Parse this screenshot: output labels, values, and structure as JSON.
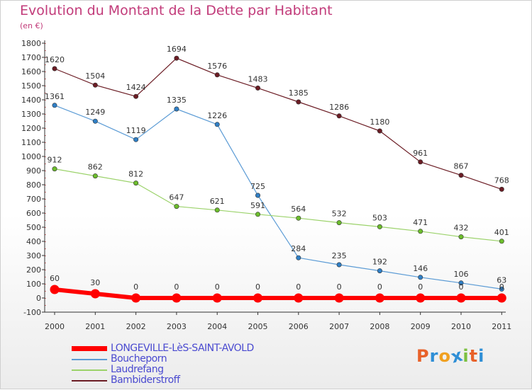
{
  "title": "Evolution du Montant de la Dette par Habitant",
  "subtitle": "(en €)",
  "logo": {
    "letters": [
      "P",
      "r",
      "o",
      "x",
      "i",
      "t",
      "i"
    ],
    "colors": [
      "#e8622a",
      "#2f8fd6",
      "#f0a020",
      "#2f8fd6",
      "#7cc040",
      "#e8622a",
      "#2f8fd6"
    ]
  },
  "chart_data": {
    "type": "line",
    "x": [
      "2000",
      "2001",
      "2002",
      "2003",
      "2004",
      "2005",
      "2006",
      "2007",
      "2008",
      "2009",
      "2010",
      "2011"
    ],
    "ylim": [
      -100,
      1800
    ],
    "yticks": [
      -100,
      0,
      100,
      200,
      300,
      400,
      500,
      600,
      700,
      800,
      900,
      1000,
      1100,
      1200,
      1300,
      1400,
      1500,
      1600,
      1700,
      1800
    ],
    "grid": false,
    "legend_position": "bottom-left",
    "series": [
      {
        "name": "Bambiderstroff",
        "color": "#6b1c24",
        "dot": "#6b1c24",
        "width": 1.2,
        "values": [
          1620,
          1504,
          1424,
          1694,
          1576,
          1483,
          1385,
          1286,
          1180,
          961,
          867,
          768
        ]
      },
      {
        "name": "Boucheporn",
        "color": "#5b9bd5",
        "dot": "#2f7fc6",
        "width": 1.2,
        "values": [
          1361,
          1249,
          1119,
          1335,
          1226,
          725,
          284,
          235,
          192,
          146,
          106,
          63
        ]
      },
      {
        "name": "Laudrefang",
        "color": "#9bd26a",
        "dot": "#6cbd2c",
        "width": 1.2,
        "values": [
          912,
          862,
          812,
          647,
          621,
          591,
          564,
          532,
          503,
          471,
          432,
          401
        ]
      },
      {
        "name": "LONGEVILLE-LèS-SAINT-AVOLD",
        "color": "#ff0000",
        "dot": "#ff0000",
        "width": 6,
        "values": [
          60,
          30,
          0,
          0,
          0,
          0,
          0,
          0,
          0,
          0,
          0,
          0
        ]
      }
    ]
  },
  "legend": [
    {
      "label": "LONGEVILLE-LèS-SAINT-AVOLD",
      "color": "#ff0000",
      "thick": true
    },
    {
      "label": "Boucheporn",
      "color": "#5b9bd5",
      "thick": false
    },
    {
      "label": "Laudrefang",
      "color": "#9bd26a",
      "thick": false
    },
    {
      "label": "Bambiderstroff",
      "color": "#6b1c24",
      "thick": false
    }
  ]
}
